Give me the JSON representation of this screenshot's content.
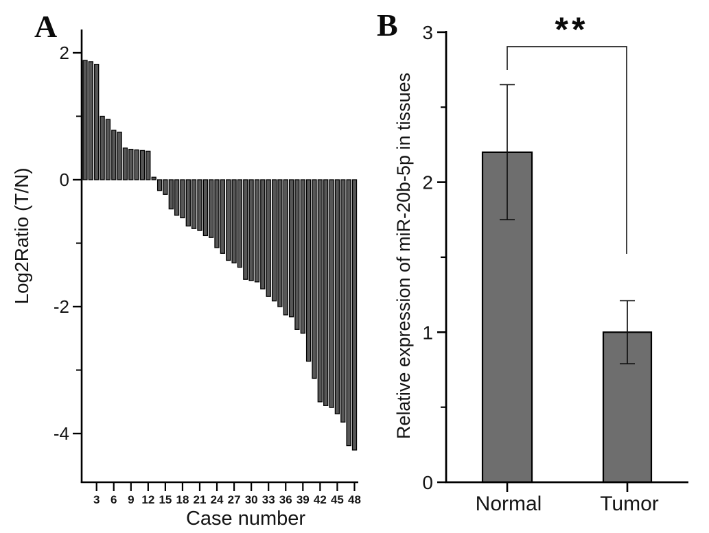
{
  "figure_type": "two-panel scientific bar figure",
  "panels": {
    "a_letter": "A",
    "b_letter": "B"
  },
  "colors": {
    "background": "#ffffff",
    "axis": "#000000",
    "panel_a_bar_fill": "#575757",
    "panel_b_bar_fill": "#6e6e6e",
    "bar_stroke": "#000000",
    "text": "#141414"
  },
  "chart_data": [
    {
      "panel": "A",
      "type": "bar",
      "title": "",
      "xlabel": "Case number",
      "ylabel": "Log2Ratio (T/N)",
      "n_cases": 48,
      "x": [
        1,
        2,
        3,
        4,
        5,
        6,
        7,
        8,
        9,
        10,
        11,
        12,
        13,
        14,
        15,
        16,
        17,
        18,
        19,
        20,
        21,
        22,
        23,
        24,
        25,
        26,
        27,
        28,
        29,
        30,
        31,
        32,
        33,
        34,
        35,
        36,
        37,
        38,
        39,
        40,
        41,
        42,
        43,
        44,
        45,
        46,
        47,
        48
      ],
      "values": [
        1.88,
        1.86,
        1.82,
        1.0,
        0.95,
        0.78,
        0.75,
        0.5,
        0.48,
        0.47,
        0.46,
        0.45,
        0.04,
        -0.17,
        -0.23,
        -0.46,
        -0.56,
        -0.6,
        -0.73,
        -0.77,
        -0.8,
        -0.88,
        -0.91,
        -1.07,
        -1.16,
        -1.27,
        -1.31,
        -1.38,
        -1.57,
        -1.59,
        -1.61,
        -1.72,
        -1.84,
        -1.91,
        -2.0,
        -2.13,
        -2.16,
        -2.36,
        -2.42,
        -2.86,
        -3.13,
        -3.5,
        -3.56,
        -3.59,
        -3.69,
        -3.82,
        -4.19,
        -4.26
      ],
      "ylim": [
        -4.75,
        2.35
      ],
      "yticks_major": [
        2,
        0,
        -2,
        -4
      ],
      "yticks_minor": [
        1,
        -1,
        -3
      ],
      "xtick_labels": [
        3,
        6,
        9,
        12,
        15,
        18,
        21,
        24,
        27,
        30,
        33,
        36,
        39,
        42,
        45,
        48
      ],
      "grid": "off",
      "legend": "none",
      "sorted": "descending waterfall"
    },
    {
      "panel": "B",
      "type": "bar",
      "title": "",
      "xlabel": "",
      "ylabel": "Relative expression of miR-20b-5p in tissues",
      "categories": [
        "Normal",
        "Tumor"
      ],
      "values": [
        2.2,
        1.0
      ],
      "errors": [
        0.45,
        0.21
      ],
      "ylim": [
        0,
        3
      ],
      "yticks_major": [
        3,
        2,
        1,
        0
      ],
      "yticks_minor": [
        2.5,
        1.5,
        0.5
      ],
      "significance": "**",
      "grid": "off",
      "legend": "none"
    }
  ]
}
